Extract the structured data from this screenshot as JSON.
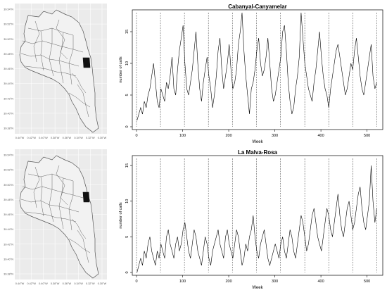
{
  "maps": [
    {
      "lat_ticks": [
        "39.54°N",
        "39.52°N",
        "39.50°N",
        "39.48°N",
        "39.46°N",
        "39.44°N",
        "39.42°N",
        "39.40°N",
        "39.38°N"
      ],
      "lon_ticks": [
        "0.44°W",
        "0.42°W",
        "0.40°W",
        "0.38°W",
        "0.36°W",
        "0.34°W",
        "0.32°W",
        "0.30°W"
      ],
      "highlighted_district": "Cabanyal-Canyamelar",
      "colors": {
        "background": "#ebebeb",
        "fill": "#f2f2f2",
        "border": "#555555",
        "highlight": "#111111",
        "grid": "#ffffff"
      }
    },
    {
      "lat_ticks": [
        "39.54°N",
        "39.52°N",
        "39.50°N",
        "39.48°N",
        "39.46°N",
        "39.44°N",
        "39.42°N",
        "39.40°N",
        "39.38°N"
      ],
      "lon_ticks": [
        "0.44°W",
        "0.42°W",
        "0.40°W",
        "0.38°W",
        "0.36°W",
        "0.34°W",
        "0.32°W",
        "0.30°W"
      ],
      "highlighted_district": "La Malva-Rosa",
      "colors": {
        "background": "#ebebeb",
        "fill": "#f2f2f2",
        "border": "#555555",
        "highlight": "#111111",
        "grid": "#ffffff"
      }
    }
  ],
  "chart_data": [
    {
      "type": "line",
      "title": "Cabanyal-Canyamelar",
      "xlabel": "Week",
      "ylabel": "number of calls",
      "xlim": [
        0,
        525
      ],
      "ylim": [
        0,
        18
      ],
      "xticks": [
        0,
        100,
        200,
        300,
        400,
        500
      ],
      "yticks": [
        0,
        5,
        10,
        15
      ],
      "vlines": [
        0,
        52,
        104,
        156,
        208,
        260,
        312,
        365,
        417,
        469,
        521
      ],
      "grid": false,
      "series": [
        {
          "x_start": 1,
          "x_step": 4,
          "values": [
            1,
            2,
            3,
            2,
            4,
            3,
            5,
            6,
            8,
            10,
            7,
            4,
            3,
            6,
            5,
            4,
            7,
            6,
            8,
            11,
            6,
            5,
            9,
            12,
            14,
            16,
            10,
            6,
            5,
            7,
            9,
            12,
            15,
            10,
            6,
            4,
            7,
            9,
            11,
            8,
            6,
            3,
            5,
            8,
            12,
            14,
            9,
            6,
            8,
            10,
            13,
            9,
            6,
            7,
            9,
            13,
            15,
            18,
            12,
            8,
            5,
            2,
            6,
            7,
            9,
            12,
            14,
            10,
            8,
            9,
            11,
            14,
            10,
            6,
            4,
            5,
            7,
            9,
            11,
            15,
            16,
            12,
            7,
            4,
            2,
            3,
            6,
            8,
            11,
            18,
            14,
            10,
            8,
            6,
            5,
            4,
            7,
            9,
            12,
            15,
            11,
            8,
            6,
            5,
            3,
            6,
            8,
            10,
            12,
            13,
            11,
            9,
            7,
            5,
            6,
            8,
            10,
            9,
            12,
            14,
            11,
            8,
            6,
            5,
            7,
            9,
            11,
            13,
            8,
            6,
            7
          ]
        }
      ]
    },
    {
      "type": "line",
      "title": "La Malva-Rosa",
      "xlabel": "Week",
      "ylabel": "number of calls",
      "xlim": [
        0,
        525
      ],
      "ylim": [
        0,
        16
      ],
      "xticks": [
        0,
        100,
        200,
        300,
        400,
        500
      ],
      "yticks": [
        0,
        5,
        10,
        15
      ],
      "vlines": [
        0,
        52,
        104,
        156,
        208,
        260,
        312,
        365,
        417,
        469,
        521
      ],
      "grid": false,
      "series": [
        {
          "x_start": 1,
          "x_step": 4,
          "values": [
            0,
            1,
            2,
            1,
            3,
            2,
            4,
            5,
            3,
            2,
            1,
            3,
            2,
            4,
            3,
            2,
            5,
            6,
            4,
            3,
            2,
            4,
            5,
            3,
            4,
            6,
            7,
            5,
            3,
            2,
            4,
            6,
            5,
            3,
            2,
            1,
            3,
            5,
            4,
            2,
            1,
            3,
            4,
            5,
            6,
            4,
            3,
            2,
            5,
            6,
            4,
            3,
            2,
            4,
            6,
            5,
            3,
            1,
            2,
            4,
            3,
            5,
            6,
            8,
            5,
            3,
            2,
            4,
            5,
            6,
            4,
            2,
            1,
            2,
            3,
            4,
            3,
            2,
            4,
            5,
            3,
            2,
            4,
            6,
            5,
            3,
            2,
            4,
            6,
            8,
            7,
            5,
            3,
            4,
            6,
            8,
            9,
            7,
            5,
            4,
            3,
            5,
            7,
            9,
            8,
            6,
            5,
            7,
            9,
            11,
            8,
            6,
            5,
            7,
            9,
            10,
            8,
            6,
            7,
            9,
            11,
            12,
            9,
            7,
            6,
            8,
            10,
            15,
            10,
            7,
            9
          ]
        }
      ]
    }
  ]
}
